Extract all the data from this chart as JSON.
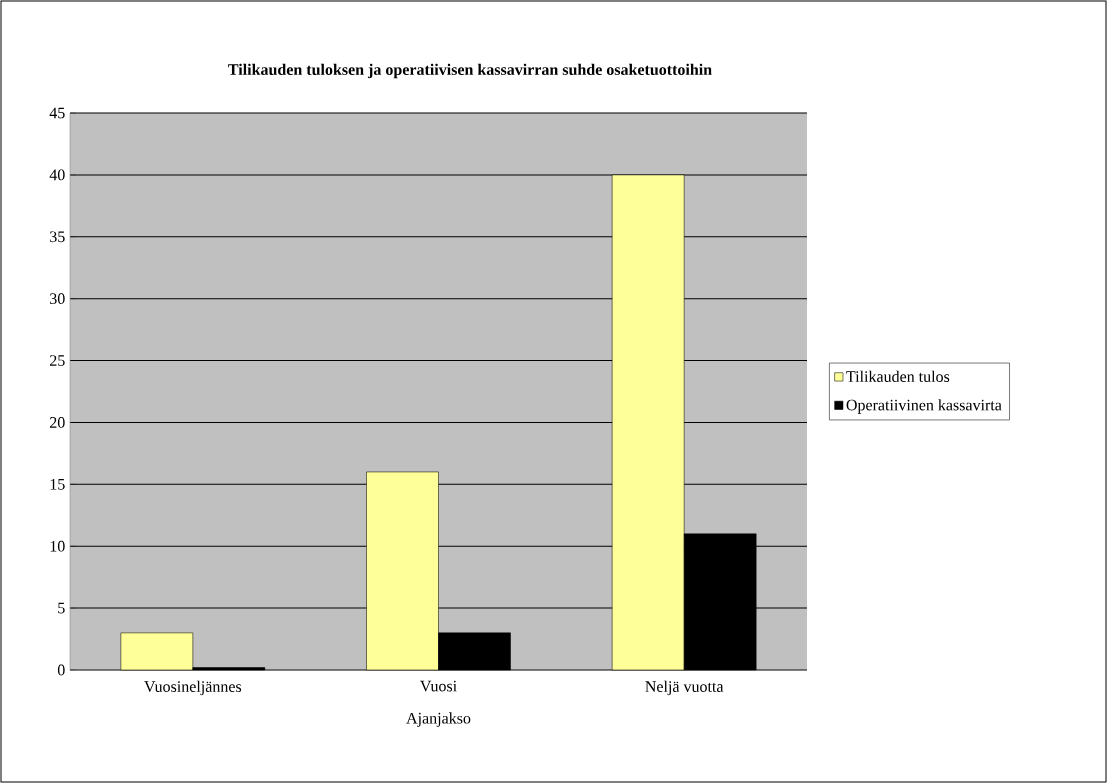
{
  "chart_data": {
    "type": "bar",
    "title": "Tilikauden tuloksen ja operatiivisen kassavirran suhde osaketuottoihin",
    "xlabel": "Ajanjakso",
    "categories": [
      "Vuosineljännes",
      "Vuosi",
      "Neljä vuotta"
    ],
    "series": [
      {
        "name": "Tilikauden tulos",
        "color": "#ffff99",
        "values": [
          3,
          16,
          40
        ]
      },
      {
        "name": "Operatiivinen kassavirta",
        "color": "#000000",
        "values": [
          0.2,
          3,
          11
        ]
      }
    ],
    "ylim": [
      0,
      45
    ],
    "yticks": [
      0,
      5,
      10,
      15,
      20,
      25,
      30,
      35,
      40,
      45
    ],
    "grid": "y",
    "legend": "right"
  }
}
